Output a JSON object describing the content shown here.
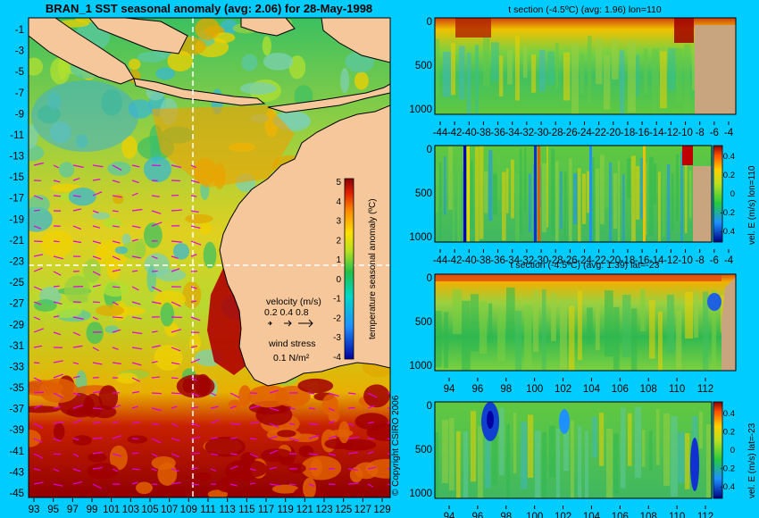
{
  "colors": {
    "background": "#00ccff",
    "land": "#f5c79a",
    "section_land": "#c9a57f",
    "vector_arrow": "#e000e0",
    "grid_line": "#ffffff"
  },
  "main_map": {
    "title": "BRAN_1  SST seasonal anomaly  (avg: 2.06) for 28-May-1998",
    "x_ticks": [
      "93",
      "95",
      "97",
      "99",
      "101",
      "103",
      "105",
      "107",
      "109",
      "111",
      "113",
      "115",
      "117",
      "119",
      "121",
      "123",
      "125",
      "127",
      "129"
    ],
    "y_ticks": [
      "-1",
      "-3",
      "-5",
      "-7",
      "-9",
      "-11",
      "-13",
      "-15",
      "-17",
      "-19",
      "-21",
      "-23",
      "-25",
      "-27",
      "-29",
      "-31",
      "-33",
      "-35",
      "-37",
      "-39",
      "-41",
      "-43",
      "-45"
    ],
    "colorbar_label": "temperature seasonal anomaly (ºC)",
    "colorbar_ticks": [
      "5",
      "4",
      "3",
      "2",
      "1",
      "0",
      "-1",
      "-2",
      "-3",
      "-4"
    ],
    "velocity_label": "velocity (m/s)",
    "velocity_scale": "0.2 0.4 0.8",
    "wind_label": "wind stress",
    "wind_scale": "0.1 N/m²",
    "crosshair": {
      "lon": 110,
      "lat": -23
    }
  },
  "copyright": "© Copyright CSIRO 2006",
  "chart_data": [
    {
      "type": "heatmap",
      "title": "BRAN_1  SST seasonal anomaly  (avg: 2.06) for 28-May-1998",
      "x_range": [
        93,
        130
      ],
      "y_range": [
        -45,
        0
      ],
      "colorbar_range": [
        -4,
        5
      ],
      "average": 2.06
    },
    {
      "type": "heatmap",
      "title": "t section (-4.5ºC) (avg: 1.96) lon=110",
      "x_ticks": [
        "-44",
        "-42",
        "-40",
        "-38",
        "-36",
        "-34",
        "-32",
        "-30",
        "-28",
        "-26",
        "-24",
        "-22",
        "-20",
        "-18",
        "-16",
        "-14",
        "-12",
        "-10",
        "-8",
        "-6",
        "-4"
      ],
      "y_ticks": [
        "0",
        "500",
        "1000"
      ],
      "y_range": [
        0,
        1050
      ],
      "average": 1.96
    },
    {
      "type": "heatmap",
      "title": "",
      "x_ticks": [
        "-44",
        "-42",
        "-40",
        "-38",
        "-36",
        "-34",
        "-32",
        "-30",
        "-28",
        "-26",
        "-24",
        "-22",
        "-20",
        "-18",
        "-16",
        "-14",
        "-12",
        "-10",
        "-8",
        "-6",
        "-4"
      ],
      "y_ticks": [
        "0",
        "500",
        "1000"
      ],
      "colorbar_label": "vel. E (m/s) lon=110",
      "colorbar_ticks": [
        "0.4",
        "0.2",
        "0",
        "-0.2",
        "-0.4"
      ]
    },
    {
      "type": "heatmap",
      "title": "t section (-4.5ºC) (avg: 1.39) lat=-23",
      "x_ticks": [
        "94",
        "96",
        "98",
        "100",
        "102",
        "104",
        "106",
        "108",
        "110",
        "112"
      ],
      "y_ticks": [
        "0",
        "500",
        "1000"
      ],
      "y_range": [
        0,
        1050
      ],
      "average": 1.39
    },
    {
      "type": "heatmap",
      "title": "",
      "x_ticks": [
        "94",
        "96",
        "98",
        "100",
        "102",
        "104",
        "106",
        "108",
        "110",
        "112"
      ],
      "y_ticks": [
        "0",
        "500",
        "1000"
      ],
      "colorbar_label": "vel. E (m/s) lat=-23",
      "colorbar_ticks": [
        "0.4",
        "0.2",
        "0",
        "-0.2",
        "-0.4"
      ]
    }
  ]
}
